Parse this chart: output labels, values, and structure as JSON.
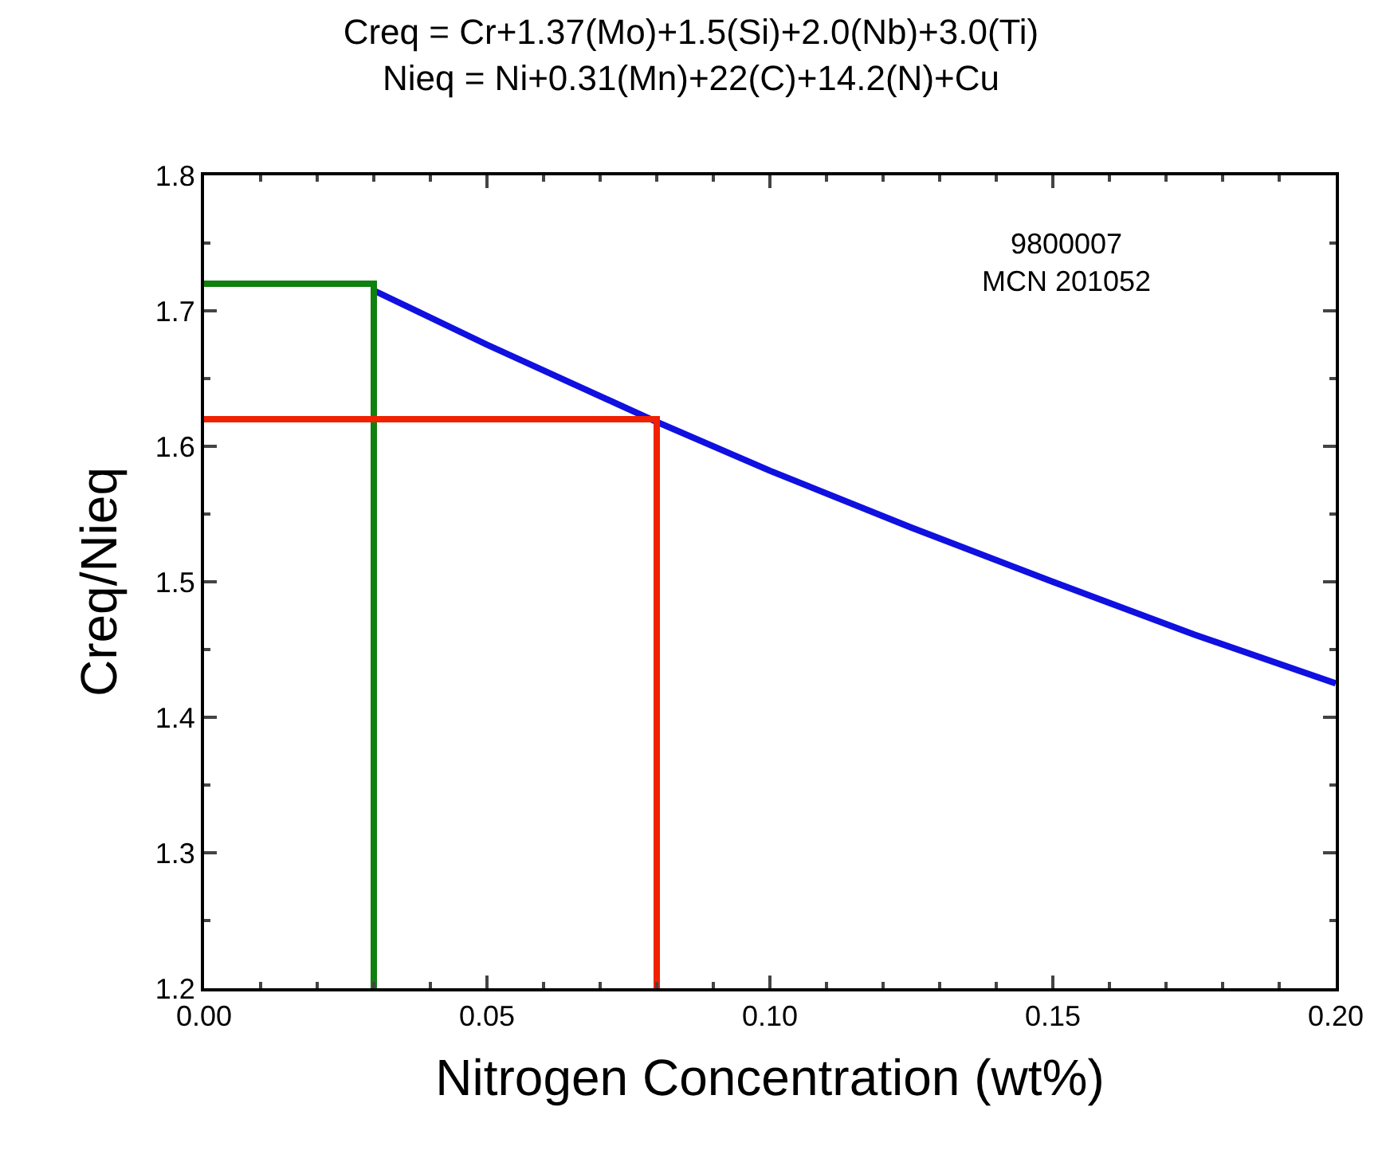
{
  "chart_data": {
    "type": "line",
    "title": "Creq = Cr+1.37(Mo)+1.5(Si)+2.0(Nb)+3.0(Ti)",
    "subtitle": "Nieq = Ni+0.31(Mn)+22(C)+14.2(N)+Cu",
    "xlabel": "Nitrogen Concentration (wt%)",
    "ylabel": "Creq/Nieq",
    "annotations": [
      "9800007\nMCN 201052"
    ],
    "series": [
      {
        "color": "#1010e0",
        "x": [
          0.03,
          0.05,
          0.08,
          0.1,
          0.125,
          0.15,
          0.175,
          0.2
        ],
        "values": [
          1.715,
          1.675,
          1.618,
          1.582,
          1.54,
          1.5,
          1.461,
          1.425
        ]
      },
      {
        "color": "#108010",
        "x": [
          0,
          0.03,
          0.03
        ],
        "values": [
          1.72,
          1.72,
          1.2
        ]
      },
      {
        "color": "#f02000",
        "x": [
          0,
          0.08,
          0.08
        ],
        "values": [
          1.62,
          1.62,
          1.2
        ]
      }
    ],
    "xlim": [
      0,
      0.2
    ],
    "ylim": [
      1.2,
      1.8
    ],
    "xticks": [
      {
        "value": 0,
        "label": "0.00"
      },
      {
        "value": 0.05,
        "label": "0.05"
      },
      {
        "value": 0.1,
        "label": "0.10"
      },
      {
        "value": 0.15,
        "label": "0.15"
      },
      {
        "value": 0.2,
        "label": "0.20"
      }
    ],
    "yticks": [
      1.2,
      1.3,
      1.4,
      1.5,
      1.6,
      1.7,
      1.8
    ],
    "legend": false,
    "marker": "none",
    "line_style": "solid"
  }
}
